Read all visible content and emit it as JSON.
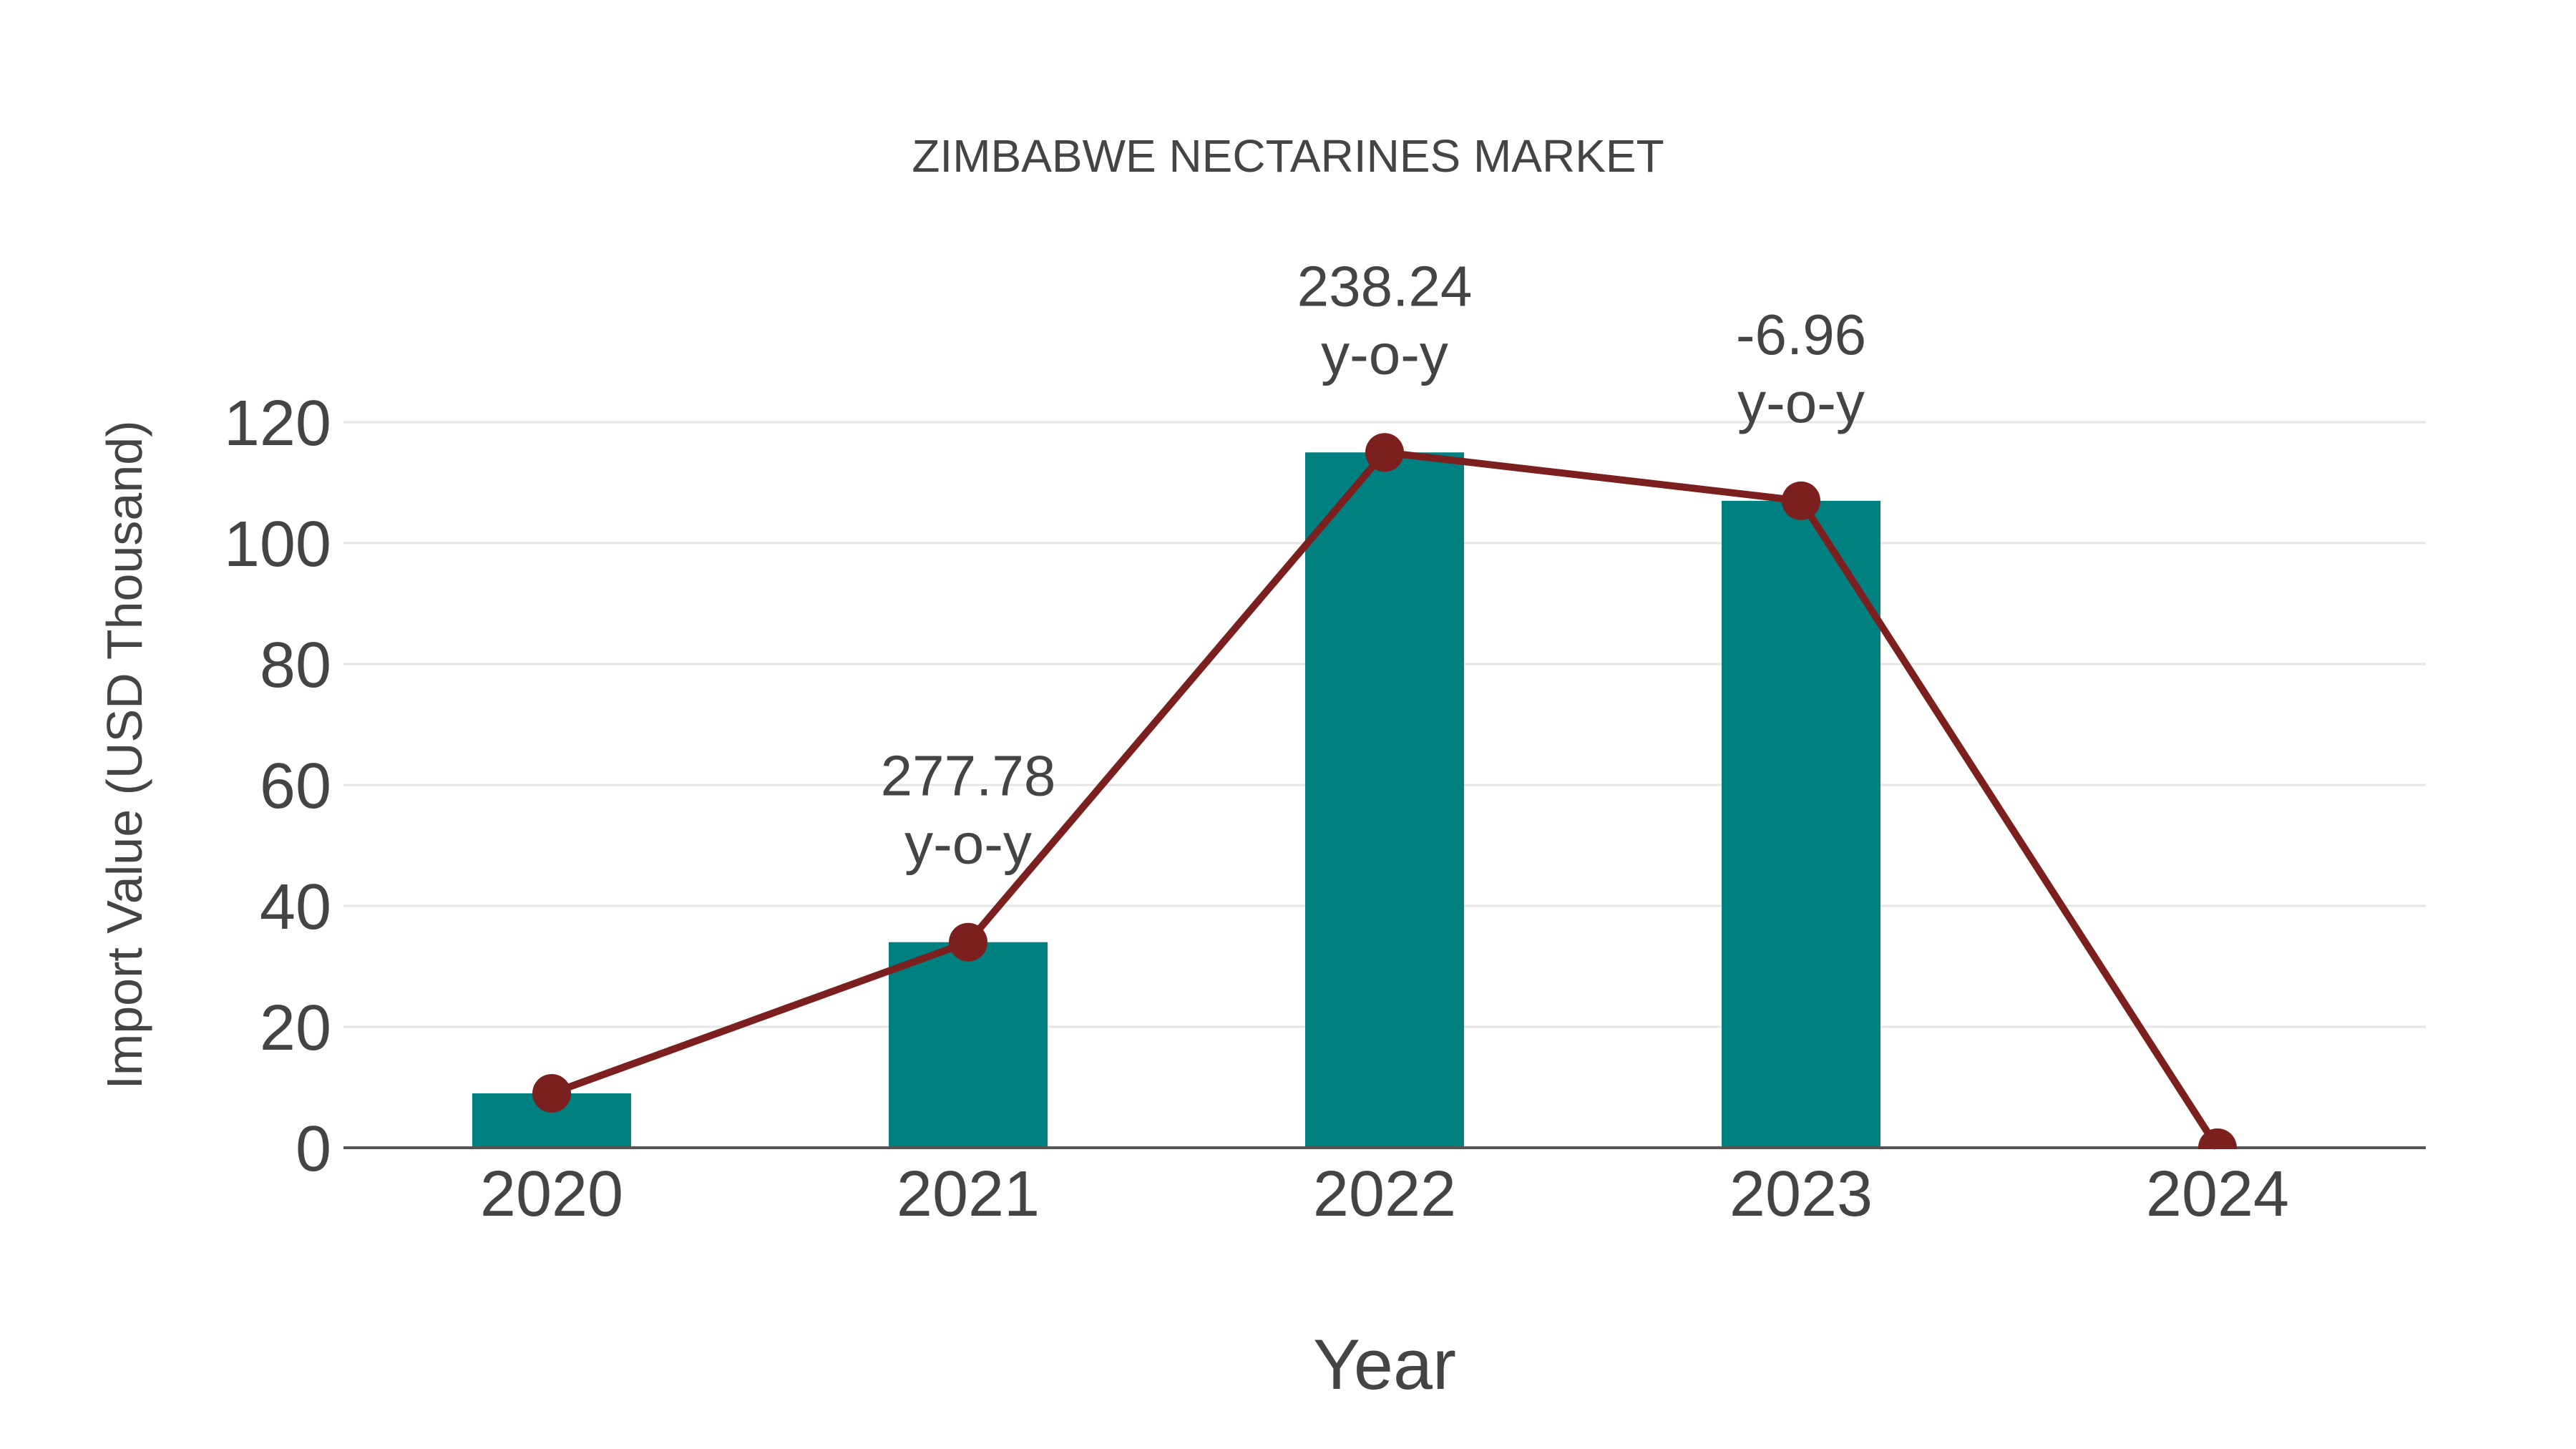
{
  "chart_data": {
    "type": "bar",
    "title": "ZIMBABWE NECTARINES MARKET",
    "xlabel": "Year",
    "ylabel": "Import Value (USD Thousand)",
    "categories": [
      "2020",
      "2021",
      "2022",
      "2023",
      "2024"
    ],
    "series": [
      {
        "name": "Import Value",
        "type": "bar",
        "color": "#008080",
        "values": [
          9,
          34,
          115,
          107,
          0
        ]
      },
      {
        "name": "Trend",
        "type": "line",
        "color": "#7b1f1f",
        "values": [
          9,
          34,
          115,
          107,
          0
        ]
      }
    ],
    "annotations": [
      {
        "category": "2021",
        "value": "277.78",
        "suffix": "y-o-y"
      },
      {
        "category": "2022",
        "value": "238.24",
        "suffix": "y-o-y"
      },
      {
        "category": "2023",
        "value": "-6.96",
        "suffix": "y-o-y"
      }
    ],
    "ylim": [
      0,
      126
    ],
    "yticks": [
      0,
      20,
      40,
      60,
      80,
      100,
      120
    ],
    "grid": true,
    "legend": "none"
  }
}
